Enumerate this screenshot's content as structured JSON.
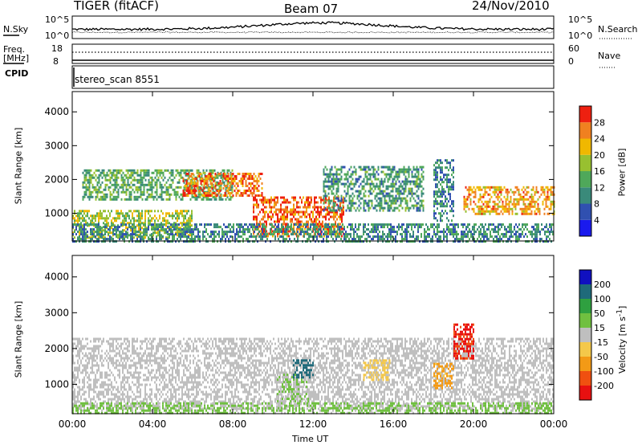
{
  "header": {
    "radar_title": "TIGER (fitACF)",
    "beam": "Beam 07",
    "date": "24/Nov/2010"
  },
  "strips": {
    "nsky_label": "N.Sky",
    "nsky_ticks": [
      "10^5",
      "10^0"
    ],
    "nsearch_label": "N.Search",
    "nsearch_ticks": [
      "10^5",
      "10^0"
    ],
    "freq_label": "Freq.",
    "freq_unit": "[MHz]",
    "freq_ticks": [
      "18",
      "8"
    ],
    "nave_label": "Nave",
    "nave_ticks": [
      "60",
      "0"
    ],
    "cpid_label": "CPID",
    "cpid_value": "stereo_scan 8551"
  },
  "chart_data": [
    {
      "type": "heatmap",
      "panel": "power",
      "xlabel": "",
      "ylabel": "Slant Range [km]",
      "x_ticks": [
        "00:00",
        "04:00",
        "08:00",
        "12:00",
        "16:00",
        "20:00",
        "00:00"
      ],
      "y_ticks": [
        "1000",
        "2000",
        "3000",
        "4000"
      ],
      "ylim": [
        180,
        4600
      ],
      "xlim_hours": [
        0,
        24
      ],
      "colorbar_label": "Power [dB]",
      "colorbar_ticks": [
        "28",
        "24",
        "20",
        "16",
        "12",
        "8",
        "4"
      ],
      "colorbar_range": [
        0,
        30
      ],
      "colors": [
        "#1a1aee",
        "#3050b0",
        "#3a8a7a",
        "#4fa85a",
        "#98c030",
        "#f0b800",
        "#f08020",
        "#ee2010"
      ],
      "regions": [
        {
          "t0": 0.0,
          "t1": 6.0,
          "r0": 250,
          "r1": 1100,
          "v": 17
        },
        {
          "t0": 0.5,
          "t1": 8.0,
          "r0": 1400,
          "r1": 2300,
          "v": 13
        },
        {
          "t0": 5.5,
          "t1": 9.5,
          "r0": 1500,
          "r1": 2200,
          "v": 25
        },
        {
          "t0": 9.0,
          "t1": 13.5,
          "r0": 300,
          "r1": 1500,
          "v": 26
        },
        {
          "t0": 12.5,
          "t1": 17.5,
          "r0": 1100,
          "r1": 2400,
          "v": 11
        },
        {
          "t0": 18.0,
          "t1": 19.0,
          "r0": 800,
          "r1": 2600,
          "v": 9
        },
        {
          "t0": 19.5,
          "t1": 24.0,
          "r0": 1000,
          "r1": 1800,
          "v": 22
        },
        {
          "t0": 0.0,
          "t1": 24.0,
          "r0": 200,
          "r1": 700,
          "v": 10
        }
      ]
    },
    {
      "type": "heatmap",
      "panel": "velocity",
      "xlabel": "Time UT",
      "ylabel": "Slant Range [km]",
      "x_ticks": [
        "00:00",
        "04:00",
        "08:00",
        "12:00",
        "16:00",
        "20:00",
        "00:00"
      ],
      "y_ticks": [
        "1000",
        "2000",
        "3000",
        "4000"
      ],
      "ylim": [
        180,
        4600
      ],
      "xlim_hours": [
        0,
        24
      ],
      "colorbar_label": "Velocity [m s^-1]",
      "colorbar_ticks": [
        "200",
        "100",
        "50",
        "15",
        "-15",
        "-50",
        "-100",
        "-200"
      ],
      "colorbar_range": [
        -250,
        250
      ],
      "colors": [
        "#e81010",
        "#f05010",
        "#f39a16",
        "#f4c84a",
        "#bfbfbf",
        "#70c040",
        "#2fa040",
        "#1f6a7a",
        "#1010c0"
      ],
      "regions": [
        {
          "t0": 0.0,
          "t1": 24.0,
          "r0": 300,
          "r1": 2300,
          "v": 0
        },
        {
          "t0": 10.2,
          "t1": 11.8,
          "r0": 500,
          "r1": 1300,
          "v": 30
        },
        {
          "t0": 11.0,
          "t1": 12.0,
          "r0": 1200,
          "r1": 1700,
          "v": 160
        },
        {
          "t0": 14.5,
          "t1": 15.8,
          "r0": 1100,
          "r1": 1700,
          "v": -60
        },
        {
          "t0": 18.0,
          "t1": 19.0,
          "r0": 900,
          "r1": 1600,
          "v": -100
        },
        {
          "t0": 19.0,
          "t1": 20.0,
          "r0": 1700,
          "r1": 2700,
          "v": -200
        },
        {
          "t0": 0.0,
          "t1": 24.0,
          "r0": 200,
          "r1": 500,
          "v": 40
        }
      ]
    }
  ]
}
